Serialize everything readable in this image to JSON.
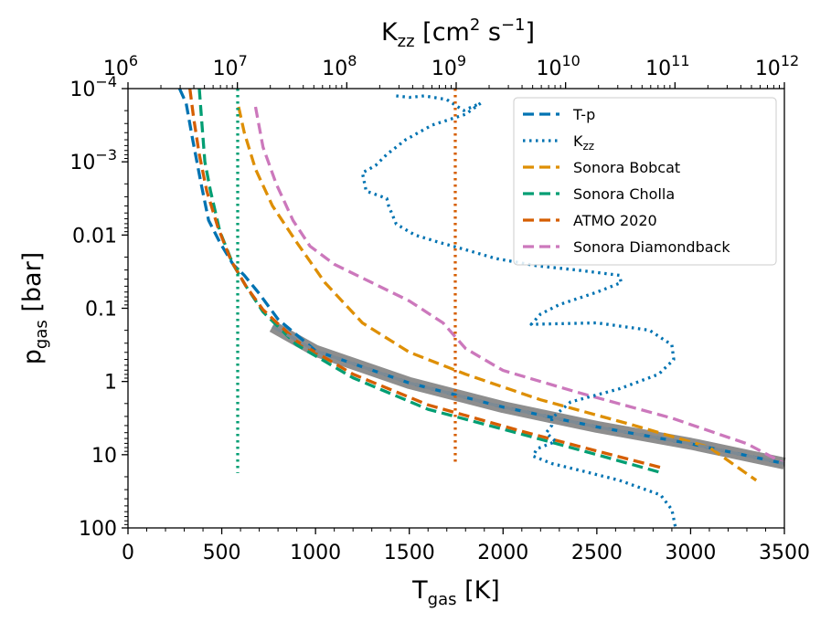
{
  "chart_data": {
    "type": "line",
    "title": "",
    "xlabel": {
      "main": "T",
      "sub": "gas",
      "unit": " [K]"
    },
    "ylabel": {
      "main": "p",
      "sub": "gas",
      "unit": " [bar]"
    },
    "top_xlabel": {
      "main": "K",
      "sub": "zz",
      "bracket_open": " [cm",
      "sup": "2",
      "s_part": " s",
      "sup2": "−1",
      "bracket_close": "]"
    },
    "xlim": [
      0,
      3500
    ],
    "ylim_log": [
      -4,
      2
    ],
    "top_xlim_log": [
      6,
      12
    ],
    "x_ticks": [
      {
        "v": 0,
        "label": "0"
      },
      {
        "v": 500,
        "label": "500"
      },
      {
        "v": 1000,
        "label": "1000"
      },
      {
        "v": 1500,
        "label": "1500"
      },
      {
        "v": 2000,
        "label": "2000"
      },
      {
        "v": 2500,
        "label": "2500"
      },
      {
        "v": 3000,
        "label": "3000"
      },
      {
        "v": 3500,
        "label": "3500"
      }
    ],
    "y_ticks": [
      {
        "v": -4,
        "base": "10",
        "exp": "−4"
      },
      {
        "v": -3,
        "base": "10",
        "exp": "−3"
      },
      {
        "v": -2,
        "base": "0.01",
        "exp": ""
      },
      {
        "v": -1,
        "base": "0.1",
        "exp": ""
      },
      {
        "v": 0,
        "base": "1",
        "exp": ""
      },
      {
        "v": 1,
        "base": "10",
        "exp": ""
      },
      {
        "v": 2,
        "base": "100",
        "exp": ""
      }
    ],
    "top_ticks": [
      {
        "v": 6,
        "base": "10",
        "exp": "6"
      },
      {
        "v": 7,
        "base": "10",
        "exp": "7"
      },
      {
        "v": 8,
        "base": "10",
        "exp": "8"
      },
      {
        "v": 9,
        "base": "10",
        "exp": "9"
      },
      {
        "v": 10,
        "base": "10",
        "exp": "10"
      },
      {
        "v": 11,
        "base": "10",
        "exp": "11"
      },
      {
        "v": 12,
        "base": "10",
        "exp": "12"
      }
    ],
    "fit_band": {
      "name": "fit",
      "color": "#888888",
      "points": [
        [
          770,
          -0.75
        ],
        [
          1000,
          -0.42
        ],
        [
          1500,
          0.02
        ],
        [
          2000,
          0.35
        ],
        [
          2500,
          0.62
        ],
        [
          3000,
          0.85
        ],
        [
          3500,
          1.12
        ]
      ]
    },
    "series": [
      {
        "name": "T-p",
        "color": "#0173b2",
        "dash": "dashed",
        "points": [
          [
            275,
            -4
          ],
          [
            310,
            -3.8
          ],
          [
            345,
            -3.3
          ],
          [
            390,
            -2.7
          ],
          [
            430,
            -2.2
          ],
          [
            490,
            -1.9
          ],
          [
            560,
            -1.6
          ],
          [
            620,
            -1.45
          ],
          [
            700,
            -1.2
          ],
          [
            800,
            -0.85
          ],
          [
            1000,
            -0.42
          ],
          [
            1500,
            0.02
          ],
          [
            2000,
            0.35
          ],
          [
            2500,
            0.62
          ],
          [
            3000,
            0.85
          ],
          [
            3500,
            1.12
          ]
        ]
      },
      {
        "name": "Sonora Bobcat",
        "color": "#de8f05",
        "dash": "dashed",
        "points": [
          [
            590,
            -3.75
          ],
          [
            620,
            -3.4
          ],
          [
            680,
            -2.9
          ],
          [
            770,
            -2.4
          ],
          [
            900,
            -1.9
          ],
          [
            1050,
            -1.35
          ],
          [
            1250,
            -0.8
          ],
          [
            1500,
            -0.4
          ],
          [
            1800,
            -0.1
          ],
          [
            2200,
            0.25
          ],
          [
            2700,
            0.6
          ],
          [
            3100,
            0.9
          ],
          [
            3350,
            1.35
          ]
        ]
      },
      {
        "name": "Sonora Cholla",
        "color": "#029e73",
        "dash": "dashed",
        "points": [
          [
            380,
            -4
          ],
          [
            395,
            -3.5
          ],
          [
            410,
            -3.0
          ],
          [
            440,
            -2.6
          ],
          [
            490,
            -2.05
          ],
          [
            560,
            -1.6
          ],
          [
            630,
            -1.3
          ],
          [
            720,
            -0.95
          ],
          [
            900,
            -0.5
          ],
          [
            1200,
            -0.05
          ],
          [
            1600,
            0.38
          ],
          [
            2100,
            0.72
          ],
          [
            2500,
            1.0
          ],
          [
            2850,
            1.25
          ]
        ]
      },
      {
        "name": "ATMO 2020",
        "color": "#d55e00",
        "dash": "dashed",
        "points": [
          [
            330,
            -4
          ],
          [
            350,
            -3.6
          ],
          [
            380,
            -3.1
          ],
          [
            420,
            -2.6
          ],
          [
            480,
            -2.1
          ],
          [
            550,
            -1.65
          ],
          [
            630,
            -1.3
          ],
          [
            720,
            -0.98
          ],
          [
            900,
            -0.55
          ],
          [
            1200,
            -0.1
          ],
          [
            1600,
            0.32
          ],
          [
            2100,
            0.68
          ],
          [
            2500,
            0.95
          ],
          [
            2850,
            1.18
          ]
        ]
      },
      {
        "name": "Sonora Diamondback",
        "color": "#cc78bc",
        "dash": "dashed",
        "points": [
          [
            680,
            -3.75
          ],
          [
            720,
            -3.2
          ],
          [
            790,
            -2.7
          ],
          [
            880,
            -2.2
          ],
          [
            970,
            -1.85
          ],
          [
            1100,
            -1.6
          ],
          [
            1300,
            -1.35
          ],
          [
            1500,
            -1.1
          ],
          [
            1680,
            -0.8
          ],
          [
            1800,
            -0.45
          ],
          [
            2000,
            -0.15
          ],
          [
            2400,
            0.15
          ],
          [
            2900,
            0.5
          ],
          [
            3300,
            0.85
          ],
          [
            3500,
            1.12
          ]
        ]
      },
      {
        "name": "K_zz profile",
        "color": "#0173b2",
        "dash": "dotted",
        "points": [
          [
            1430,
            -3.9
          ],
          [
            1500,
            -3.88
          ],
          [
            1580,
            -3.9
          ],
          [
            1700,
            -3.85
          ],
          [
            1790,
            -3.7
          ],
          [
            1880,
            -3.8
          ],
          [
            1800,
            -3.65
          ],
          [
            1620,
            -3.5
          ],
          [
            1480,
            -3.3
          ],
          [
            1380,
            -3.1
          ],
          [
            1320,
            -2.95
          ],
          [
            1250,
            -2.85
          ],
          [
            1270,
            -2.6
          ],
          [
            1380,
            -2.5
          ],
          [
            1390,
            -2.4
          ],
          [
            1430,
            -2.15
          ],
          [
            1530,
            -2.0
          ],
          [
            1660,
            -1.9
          ],
          [
            1800,
            -1.8
          ],
          [
            1960,
            -1.68
          ],
          [
            2180,
            -1.58
          ],
          [
            2400,
            -1.52
          ],
          [
            2620,
            -1.45
          ],
          [
            2630,
            -1.35
          ],
          [
            2500,
            -1.22
          ],
          [
            2300,
            -1.05
          ],
          [
            2200,
            -0.92
          ],
          [
            2150,
            -0.78
          ],
          [
            2500,
            -0.8
          ],
          [
            2780,
            -0.7
          ],
          [
            2900,
            -0.5
          ],
          [
            2910,
            -0.3
          ],
          [
            2830,
            -0.1
          ],
          [
            2620,
            0.1
          ],
          [
            2360,
            0.28
          ],
          [
            2260,
            0.5
          ],
          [
            2260,
            0.6
          ],
          [
            2230,
            0.7
          ],
          [
            2280,
            0.82
          ],
          [
            2180,
            0.92
          ],
          [
            2160,
            1.02
          ],
          [
            2260,
            1.12
          ],
          [
            2420,
            1.22
          ],
          [
            2620,
            1.35
          ],
          [
            2840,
            1.55
          ],
          [
            2900,
            1.75
          ],
          [
            2920,
            2.0
          ]
        ]
      },
      {
        "name": "Sonora Cholla K_zz",
        "color": "#029e73",
        "dash": "dotted",
        "points": [
          [
            585,
            -4
          ],
          [
            585,
            1.25
          ]
        ]
      },
      {
        "name": "ATMO 2020 K_zz",
        "color": "#d55e00",
        "dash": "dotted",
        "points": [
          [
            1745,
            -4
          ],
          [
            1745,
            1.15
          ]
        ]
      }
    ],
    "legend": {
      "placement": "top-right",
      "entries": [
        {
          "label": "T-p",
          "color": "#0173b2",
          "dash": "dashed"
        },
        {
          "label": "K",
          "sub": "zz",
          "color": "#0173b2",
          "dash": "dotted"
        },
        {
          "label": "Sonora Bobcat",
          "color": "#de8f05",
          "dash": "dashed"
        },
        {
          "label": "Sonora Cholla",
          "color": "#029e73",
          "dash": "dashed"
        },
        {
          "label": "ATMO 2020",
          "color": "#d55e00",
          "dash": "dashed"
        },
        {
          "label": "Sonora Diamondback",
          "color": "#cc78bc",
          "dash": "dashed"
        }
      ]
    }
  }
}
